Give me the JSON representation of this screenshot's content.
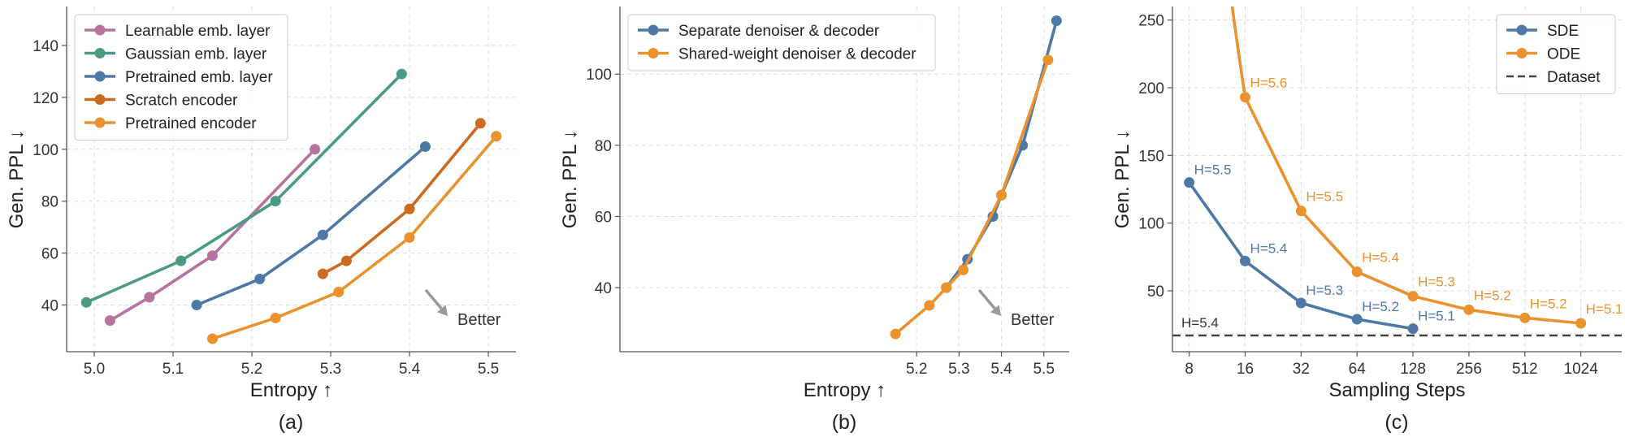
{
  "chart_data": [
    {
      "type": "line",
      "panel_label": "(a)",
      "xlabel": "Entropy ↑",
      "ylabel": "Gen. PPL ↓",
      "xlim": [
        4.965,
        5.535
      ],
      "ylim": [
        22,
        155
      ],
      "xticks": [
        5.0,
        5.1,
        5.2,
        5.3,
        5.4,
        5.5
      ],
      "xtick_labels": [
        "5.0",
        "5.1",
        "5.2",
        "5.3",
        "5.4",
        "5.5"
      ],
      "yticks": [
        40,
        60,
        80,
        100,
        120,
        140
      ],
      "ytick_labels": [
        "40",
        "60",
        "80",
        "100",
        "120",
        "140"
      ],
      "grid": true,
      "legend": "top-left",
      "annotation": "Better",
      "series": [
        {
          "name": "Learnable emb. layer",
          "color": "#b5739d",
          "x": [
            5.02,
            5.07,
            5.15,
            5.28
          ],
          "y": [
            34,
            43,
            59,
            100
          ]
        },
        {
          "name": "Gaussian emb. layer",
          "color": "#4a9a87",
          "x": [
            4.99,
            5.11,
            5.23,
            5.39
          ],
          "y": [
            41,
            57,
            80,
            129
          ]
        },
        {
          "name": "Pretrained emb. layer",
          "color": "#4e79a7",
          "x": [
            5.13,
            5.21,
            5.29,
            5.42
          ],
          "y": [
            40,
            50,
            67,
            101
          ]
        },
        {
          "name": "Scratch encoder",
          "color": "#cc6a20",
          "x": [
            5.29,
            5.32,
            5.4,
            5.49
          ],
          "y": [
            52,
            57,
            77,
            110
          ]
        },
        {
          "name": "Pretrained encoder",
          "color": "#ea922e",
          "x": [
            5.15,
            5.23,
            5.31,
            5.4,
            5.51
          ],
          "y": [
            27,
            35,
            45,
            66,
            105
          ]
        }
      ]
    },
    {
      "type": "line",
      "panel_label": "(b)",
      "xlabel": "Entropy ↑",
      "ylabel": "Gen. PPL ↓",
      "xlim": [
        4.5,
        5.56
      ],
      "ylim": [
        22,
        119
      ],
      "xticks": [
        5.2,
        5.3,
        5.4,
        5.5
      ],
      "xtick_labels": [
        "5.2",
        "5.3",
        "5.4",
        "5.5"
      ],
      "yticks": [
        40,
        60,
        80,
        100
      ],
      "ytick_labels": [
        "40",
        "60",
        "80",
        "100"
      ],
      "grid": true,
      "legend": "top-left",
      "annotation": "Better",
      "series": [
        {
          "name": "Separate denoiser & decoder",
          "color": "#4e79a7",
          "x": [
            5.27,
            5.32,
            5.38,
            5.4,
            5.45,
            5.53
          ],
          "y": [
            40,
            48,
            60,
            66,
            80,
            115
          ]
        },
        {
          "name": "Shared-weight denoiser & decoder",
          "color": "#ea922e",
          "x": [
            5.15,
            5.23,
            5.27,
            5.31,
            5.4,
            5.51
          ],
          "y": [
            27,
            35,
            40,
            45,
            66,
            104
          ]
        }
      ]
    },
    {
      "type": "line",
      "panel_label": "(c)",
      "xlabel": "Sampling Steps",
      "ylabel": "Gen. PPL ↓",
      "xscale": "log2",
      "xlim": [
        6.5,
        1700
      ],
      "ylim": [
        5,
        260
      ],
      "xticks": [
        8,
        16,
        32,
        64,
        128,
        256,
        512,
        1024
      ],
      "xtick_labels": [
        "8",
        "16",
        "32",
        "64",
        "128",
        "256",
        "512",
        "1024"
      ],
      "yticks": [
        50,
        100,
        150,
        200,
        250
      ],
      "ytick_labels": [
        "50",
        "100",
        "150",
        "200",
        "250"
      ],
      "grid": true,
      "legend": "top-right",
      "series": [
        {
          "name": "SDE",
          "color": "#4e79a7",
          "x": [
            8,
            16,
            32,
            64,
            128
          ],
          "y": [
            130,
            72,
            41,
            29,
            22
          ],
          "point_labels": [
            "H=5.5",
            "H=5.4",
            "H=5.3",
            "H=5.2",
            "H=5.1"
          ]
        },
        {
          "name": "ODE",
          "color": "#ea922e",
          "x": [
            16,
            32,
            64,
            128,
            256,
            512,
            1024
          ],
          "y": [
            193,
            109,
            64,
            46,
            36,
            30,
            26
          ],
          "point_labels": [
            "H=5.6",
            "H=5.5",
            "H=5.4",
            "H=5.3",
            "H=5.2",
            "H=5.2",
            "H=5.1"
          ],
          "extends_above_axis": true
        }
      ],
      "reference_line": {
        "name": "Dataset",
        "y": 17,
        "color": "#444444",
        "label": "H=5.4"
      }
    }
  ]
}
